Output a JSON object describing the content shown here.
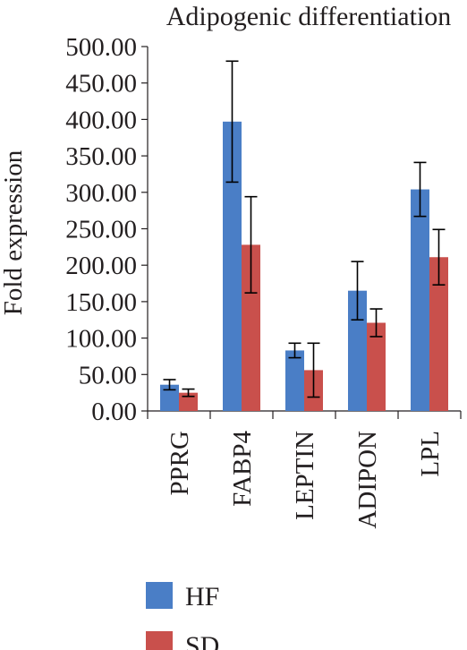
{
  "chart_data": {
    "type": "bar",
    "title": "Adipogenic differentiation",
    "ylabel": "Fold expression",
    "xlabel": "",
    "categories": [
      "PPRG",
      "FABP4",
      "LEPTIN",
      "ADIPON",
      "LPL"
    ],
    "ylim": [
      0,
      500
    ],
    "yticks": [
      "0.00",
      "50.00",
      "100.00",
      "150.00",
      "200.00",
      "250.00",
      "300.00",
      "350.00",
      "400.00",
      "450.00",
      "500.00"
    ],
    "series": [
      {
        "name": "HF",
        "color": "#4a7ec6",
        "values": [
          36,
          397,
          83,
          165,
          304
        ],
        "error": [
          7,
          83,
          10,
          40,
          37
        ]
      },
      {
        "name": "SD",
        "color": "#c9504c",
        "values": [
          25,
          228,
          56,
          121,
          211
        ],
        "error": [
          5,
          66,
          37,
          19,
          38
        ]
      }
    ],
    "legend_position": "bottom",
    "grid": false
  }
}
